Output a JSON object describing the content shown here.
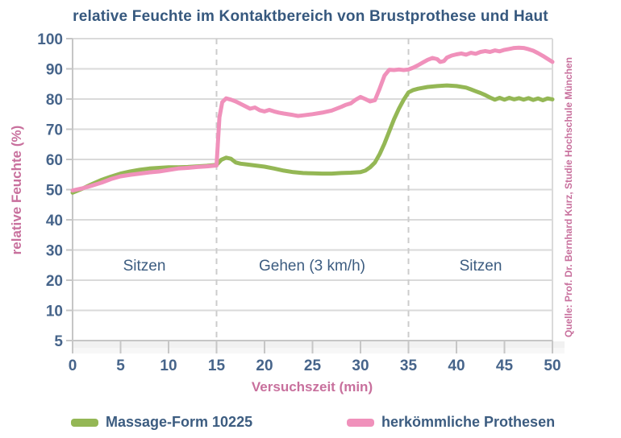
{
  "title": "relative Feuchte im Kontaktbereich von Brustprothese und Haut",
  "source_note": "Quelle: Prof. Dr. Bernhard Kurz, Studie Hochschule München",
  "colors": {
    "title_text": "#36587e",
    "tick_text": "#46648a",
    "zone_text": "#3c5c80",
    "axis_title_text": "#c8709d",
    "grid": "#dadada",
    "axis_line": "#c6c6c6",
    "divider": "#cccccc",
    "green": "#94b755",
    "pink": "#f091bb"
  },
  "chart_data": {
    "type": "line",
    "title": "relative Feuchte im Kontaktbereich von Brustprothese und Haut",
    "xlabel": "Versuchszeit (min)",
    "ylabel": "relative Feuchte (%)",
    "x_ticks": [
      0,
      5,
      10,
      15,
      20,
      25,
      30,
      35,
      40,
      45,
      50
    ],
    "y_ticks": [
      100,
      90,
      80,
      70,
      60,
      50,
      40,
      30,
      20,
      10,
      5
    ],
    "xlim": [
      0,
      50
    ],
    "ylim": [
      5,
      100
    ],
    "grid": "horizontal",
    "zones": [
      {
        "label": "Sitzen",
        "from": 0,
        "to": 15
      },
      {
        "label": "Gehen (3 km/h)",
        "from": 15,
        "to": 35
      },
      {
        "label": "Sitzen",
        "from": 35,
        "to": 50
      }
    ],
    "zone_dividers": [
      15,
      35
    ],
    "series": [
      {
        "name": "Massage-Form 10225",
        "color": "#94b755",
        "points": [
          [
            0,
            49
          ],
          [
            1,
            50.3
          ],
          [
            2,
            51.8
          ],
          [
            3,
            53.2
          ],
          [
            4,
            54.3
          ],
          [
            5,
            55.3
          ],
          [
            6,
            56
          ],
          [
            7,
            56.6
          ],
          [
            8,
            57
          ],
          [
            9,
            57.2
          ],
          [
            10,
            57.4
          ],
          [
            11,
            57.4
          ],
          [
            12,
            57.5
          ],
          [
            13,
            57.7
          ],
          [
            14,
            57.9
          ],
          [
            15,
            58.2
          ],
          [
            15.5,
            59.9
          ],
          [
            16,
            60.6
          ],
          [
            16.5,
            60.2
          ],
          [
            17,
            59
          ],
          [
            17.5,
            58.6
          ],
          [
            18,
            58.4
          ],
          [
            19,
            58
          ],
          [
            20,
            57.6
          ],
          [
            21,
            57
          ],
          [
            22,
            56.3
          ],
          [
            23,
            55.8
          ],
          [
            24,
            55.5
          ],
          [
            25,
            55.4
          ],
          [
            26,
            55.3
          ],
          [
            27,
            55.3
          ],
          [
            28,
            55.5
          ],
          [
            29,
            55.6
          ],
          [
            30,
            55.8
          ],
          [
            30.5,
            56.3
          ],
          [
            31,
            57.4
          ],
          [
            31.5,
            59
          ],
          [
            32,
            61.8
          ],
          [
            32.5,
            65.3
          ],
          [
            33,
            69.3
          ],
          [
            33.5,
            73.3
          ],
          [
            34,
            76.8
          ],
          [
            34.5,
            79.8
          ],
          [
            35,
            82.2
          ],
          [
            35.5,
            83
          ],
          [
            36,
            83.4
          ],
          [
            37,
            84
          ],
          [
            38,
            84.3
          ],
          [
            39,
            84.5
          ],
          [
            40,
            84.3
          ],
          [
            41,
            83.8
          ],
          [
            41.5,
            83.2
          ],
          [
            42,
            82.6
          ],
          [
            42.5,
            82
          ],
          [
            43,
            81.3
          ],
          [
            43.5,
            80.5
          ],
          [
            44,
            79.8
          ],
          [
            44.5,
            80.4
          ],
          [
            45,
            79.8
          ],
          [
            45.5,
            80.4
          ],
          [
            46,
            79.9
          ],
          [
            46.5,
            80.3
          ],
          [
            47,
            79.8
          ],
          [
            47.5,
            80.3
          ],
          [
            48,
            79.7
          ],
          [
            48.5,
            80.2
          ],
          [
            49,
            79.6
          ],
          [
            49.5,
            80.2
          ],
          [
            50,
            79.9
          ]
        ]
      },
      {
        "name": "herkömmliche Prothesen",
        "color": "#f091bb",
        "points": [
          [
            0,
            49.7
          ],
          [
            1,
            50.4
          ],
          [
            2,
            51.3
          ],
          [
            3,
            52.3
          ],
          [
            4,
            53.5
          ],
          [
            5,
            54.4
          ],
          [
            6,
            54.9
          ],
          [
            7,
            55.3
          ],
          [
            8,
            55.7
          ],
          [
            9,
            56
          ],
          [
            10,
            56.5
          ],
          [
            11,
            57
          ],
          [
            12,
            57.2
          ],
          [
            13,
            57.5
          ],
          [
            14,
            57.7
          ],
          [
            15,
            58
          ],
          [
            15.3,
            74
          ],
          [
            15.6,
            79
          ],
          [
            16,
            80.2
          ],
          [
            16.5,
            79.8
          ],
          [
            17,
            79.2
          ],
          [
            17.5,
            78.4
          ],
          [
            18,
            77.6
          ],
          [
            18.5,
            76.8
          ],
          [
            19,
            77.2
          ],
          [
            19.5,
            76.3
          ],
          [
            20,
            75.9
          ],
          [
            20.5,
            76.4
          ],
          [
            21,
            75.9
          ],
          [
            21.5,
            75.5
          ],
          [
            22,
            75.2
          ],
          [
            23,
            74.7
          ],
          [
            23.5,
            74.4
          ],
          [
            24,
            74.6
          ],
          [
            25,
            75
          ],
          [
            26,
            75.5
          ],
          [
            27,
            76.2
          ],
          [
            28,
            77.4
          ],
          [
            28.5,
            78.1
          ],
          [
            29,
            78.6
          ],
          [
            29.5,
            79.8
          ],
          [
            30,
            80.7
          ],
          [
            30.5,
            80
          ],
          [
            31,
            79.2
          ],
          [
            31.5,
            79.6
          ],
          [
            32,
            83.5
          ],
          [
            32.5,
            87.8
          ],
          [
            33,
            89.7
          ],
          [
            33.5,
            89.6
          ],
          [
            34,
            89.8
          ],
          [
            34.5,
            89.6
          ],
          [
            35,
            89.8
          ],
          [
            35.5,
            90.4
          ],
          [
            36,
            91.2
          ],
          [
            36.5,
            92.1
          ],
          [
            37,
            93
          ],
          [
            37.5,
            93.6
          ],
          [
            38,
            93.2
          ],
          [
            38.3,
            92.3
          ],
          [
            38.7,
            92.6
          ],
          [
            39,
            93.7
          ],
          [
            39.5,
            94.4
          ],
          [
            40,
            94.8
          ],
          [
            40.5,
            95.1
          ],
          [
            41,
            94.7
          ],
          [
            41.5,
            95.3
          ],
          [
            42,
            95
          ],
          [
            42.5,
            95.6
          ],
          [
            43,
            95.9
          ],
          [
            43.5,
            95.6
          ],
          [
            44,
            96.1
          ],
          [
            44.5,
            95.8
          ],
          [
            45,
            96.3
          ],
          [
            45.5,
            96.6
          ],
          [
            46,
            96.9
          ],
          [
            46.5,
            97
          ],
          [
            47,
            96.9
          ],
          [
            47.5,
            96.5
          ],
          [
            48,
            96
          ],
          [
            48.5,
            95.2
          ],
          [
            49,
            94.3
          ],
          [
            49.5,
            93.3
          ],
          [
            50,
            92.3
          ]
        ]
      }
    ]
  },
  "legend": {
    "items": [
      {
        "label": "Massage-Form 10225",
        "color": "#94b755"
      },
      {
        "label": "herkömmliche Prothesen",
        "color": "#f091bb"
      }
    ]
  }
}
